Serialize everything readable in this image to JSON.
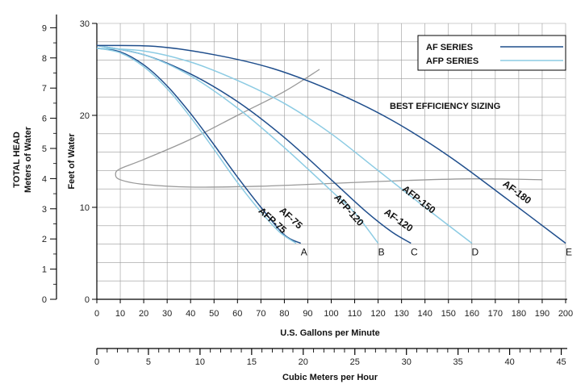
{
  "chart_data": {
    "type": "line",
    "annotation": "BEST EFFICIENCY SIZING",
    "x_axis": {
      "label": "U.S. Gallons per Minute",
      "range": [
        0,
        200
      ],
      "ticks": [
        0,
        10,
        20,
        30,
        40,
        50,
        60,
        70,
        80,
        90,
        100,
        110,
        120,
        130,
        140,
        150,
        160,
        170,
        180,
        190,
        200
      ]
    },
    "x2_axis": {
      "label": "Cubic Meters per Hour",
      "range": [
        0,
        45.42
      ],
      "ticks": [
        0,
        5,
        10,
        15,
        20,
        25,
        30,
        35,
        40,
        45
      ]
    },
    "y_axis": {
      "label": "Feet of Water",
      "range": [
        0,
        30
      ],
      "ticks": [
        0,
        10,
        20,
        30
      ]
    },
    "y2_axis": {
      "label_line1": "TOTAL HEAD",
      "label_line2": "Meters of Water",
      "range": [
        0,
        9.144
      ],
      "ticks": [
        0,
        1,
        2,
        3,
        4,
        5,
        6,
        7,
        8,
        9
      ]
    },
    "legend": {
      "placement": "top-right",
      "items": [
        {
          "name": "AF SERIES",
          "color": "#1f4e8c"
        },
        {
          "name": "AFP SERIES",
          "color": "#8ccbe3"
        }
      ]
    },
    "series": [
      {
        "name": "AF-75",
        "series_group": "AF SERIES",
        "color": "#1f4e8c",
        "end_letter": "A",
        "points": [
          [
            0,
            27.3
          ],
          [
            10,
            26.9
          ],
          [
            20,
            25.5
          ],
          [
            30,
            23.2
          ],
          [
            40,
            20.2
          ],
          [
            50,
            16.8
          ],
          [
            60,
            13.3
          ],
          [
            70,
            10.0
          ],
          [
            80,
            7.0
          ],
          [
            87,
            6.1
          ]
        ]
      },
      {
        "name": "AFP-75",
        "series_group": "AFP SERIES",
        "color": "#8ccbe3",
        "end_letter": "",
        "points": [
          [
            0,
            27.3
          ],
          [
            10,
            26.8
          ],
          [
            20,
            25.3
          ],
          [
            30,
            22.9
          ],
          [
            40,
            19.8
          ],
          [
            50,
            16.3
          ],
          [
            60,
            12.7
          ],
          [
            70,
            9.5
          ],
          [
            78,
            7.3
          ],
          [
            85,
            6.1
          ]
        ]
      },
      {
        "name": "AF-120",
        "series_group": "AF SERIES",
        "color": "#1f4e8c",
        "end_letter": "C",
        "points": [
          [
            0,
            27.6
          ],
          [
            20,
            26.6
          ],
          [
            40,
            24.5
          ],
          [
            60,
            21.5
          ],
          [
            80,
            17.6
          ],
          [
            100,
            13.0
          ],
          [
            115,
            9.5
          ],
          [
            126,
            7.3
          ],
          [
            134,
            6.1
          ]
        ]
      },
      {
        "name": "AFP-120",
        "series_group": "AFP SERIES",
        "color": "#8ccbe3",
        "end_letter": "B",
        "points": [
          [
            0,
            27.6
          ],
          [
            20,
            26.6
          ],
          [
            40,
            24.3
          ],
          [
            60,
            20.8
          ],
          [
            80,
            16.5
          ],
          [
            100,
            11.8
          ],
          [
            110,
            9.4
          ],
          [
            120,
            6.1
          ]
        ]
      },
      {
        "name": "AFP-150",
        "series_group": "AFP SERIES",
        "color": "#8ccbe3",
        "end_letter": "D",
        "points": [
          [
            0,
            27.3
          ],
          [
            20,
            27.0
          ],
          [
            40,
            25.8
          ],
          [
            60,
            23.8
          ],
          [
            80,
            21.3
          ],
          [
            100,
            18.0
          ],
          [
            120,
            14.0
          ],
          [
            140,
            10.0
          ],
          [
            160,
            6.1
          ]
        ]
      },
      {
        "name": "AF-180",
        "series_group": "AF SERIES",
        "color": "#1f4e8c",
        "end_letter": "E",
        "points": [
          [
            0,
            27.6
          ],
          [
            25,
            27.5
          ],
          [
            50,
            26.6
          ],
          [
            75,
            25.1
          ],
          [
            100,
            22.7
          ],
          [
            125,
            19.6
          ],
          [
            150,
            15.6
          ],
          [
            175,
            10.9
          ],
          [
            200,
            6.1
          ]
        ]
      }
    ],
    "efficiency_curve": {
      "color": "#999999",
      "points": [
        [
          95,
          25.0
        ],
        [
          80,
          22.6
        ],
        [
          60,
          20.0
        ],
        [
          40,
          17.4
        ],
        [
          20,
          15.2
        ],
        [
          10,
          14.2
        ],
        [
          8,
          13.6
        ],
        [
          10,
          13.0
        ],
        [
          20,
          12.5
        ],
        [
          40,
          12.2
        ],
        [
          70,
          12.3
        ],
        [
          100,
          12.6
        ],
        [
          130,
          12.9
        ],
        [
          160,
          13.1
        ],
        [
          190,
          13.0
        ]
      ]
    }
  }
}
